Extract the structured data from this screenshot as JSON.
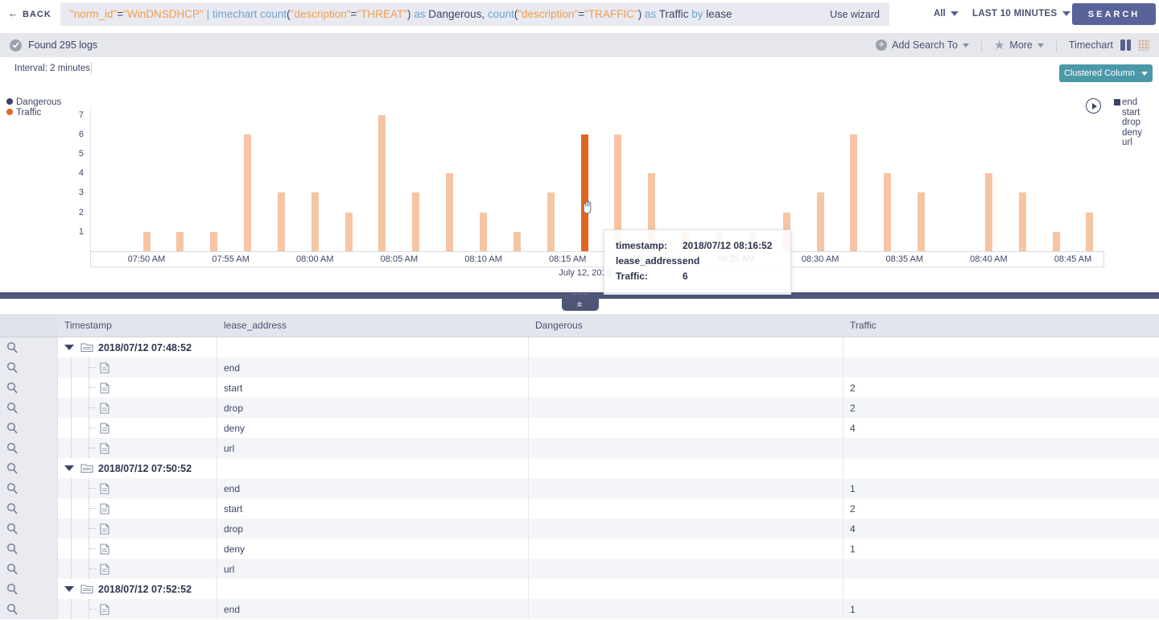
{
  "topbar": {
    "back_label": "BACK",
    "query_tokens": [
      {
        "t": "\"norm_id\"",
        "c": "str"
      },
      {
        "t": "=",
        "c": "plain"
      },
      {
        "t": "\"WinDNSDHCP\"",
        "c": "str"
      },
      {
        "t": " | ",
        "c": "kw"
      },
      {
        "t": "timechart count",
        "c": "kw"
      },
      {
        "t": "(",
        "c": "plain"
      },
      {
        "t": "\"description\"",
        "c": "str"
      },
      {
        "t": "=",
        "c": "plain"
      },
      {
        "t": "\"THREAT\"",
        "c": "str"
      },
      {
        "t": ") ",
        "c": "plain"
      },
      {
        "t": "as ",
        "c": "kw"
      },
      {
        "t": "Dangerous, ",
        "c": "plain"
      },
      {
        "t": "count",
        "c": "kw"
      },
      {
        "t": "(",
        "c": "plain"
      },
      {
        "t": "\"description\"",
        "c": "str"
      },
      {
        "t": "=",
        "c": "plain"
      },
      {
        "t": "\"TRAFFIC\"",
        "c": "str"
      },
      {
        "t": ") ",
        "c": "plain"
      },
      {
        "t": "as ",
        "c": "kw"
      },
      {
        "t": "Traffic ",
        "c": "plain"
      },
      {
        "t": "by ",
        "c": "kw"
      },
      {
        "t": "lease",
        "c": "plain"
      }
    ],
    "use_wizard": "Use wizard",
    "scope_label": "All",
    "time_range": "LAST 10 MINUTES",
    "search_label": "SEARCH"
  },
  "resultsbar": {
    "found": "Found 295 logs",
    "add_search_to": "Add Search To",
    "more": "More",
    "view_label": "Timechart"
  },
  "chart": {
    "interval_label": "Interval: 2 minutes",
    "chart_type_button": "Clustered Column",
    "series_legend": [
      {
        "label": "Dangerous",
        "color": "#3d4465"
      },
      {
        "label": "Traffic",
        "color": "#e8622d"
      }
    ],
    "group_legend": [
      "end",
      "start",
      "drop",
      "deny",
      "url"
    ],
    "date_label": "July 12, 2018",
    "tooltip": {
      "rows": [
        {
          "label": "timestamp:",
          "value": "2018/07/12 08:16:52"
        },
        {
          "label": "lease_address:",
          "value": "end"
        },
        {
          "label": "Traffic:",
          "value": "6"
        }
      ]
    }
  },
  "chart_data": {
    "type": "bar",
    "title": "",
    "xlabel": "July 12, 2018",
    "ylabel": "",
    "ylim": [
      0,
      7.5
    ],
    "y_ticks": [
      1,
      2,
      3,
      4,
      5,
      6,
      7
    ],
    "x": [
      "07:50 AM",
      "07:52 AM",
      "07:54 AM",
      "07:56 AM",
      "07:58 AM",
      "08:00 AM",
      "08:02 AM",
      "08:04 AM",
      "08:06 AM",
      "08:08 AM",
      "08:10 AM",
      "08:12 AM",
      "08:14 AM",
      "08:16 AM",
      "08:18 AM",
      "08:20 AM",
      "08:22 AM",
      "08:24 AM",
      "08:26 AM",
      "08:28 AM",
      "08:30 AM",
      "08:32 AM",
      "08:34 AM",
      "08:36 AM",
      "08:38 AM",
      "08:40 AM",
      "08:42 AM",
      "08:44 AM",
      "08:46 AM"
    ],
    "x_tick_labels": [
      "07:50 AM",
      "07:55 AM",
      "08:00 AM",
      "08:05 AM",
      "08:10 AM",
      "08:15 AM",
      "08:20 AM",
      "08:25 AM",
      "08:30 AM",
      "08:35 AM",
      "08:40 AM",
      "08:45 AM"
    ],
    "series": [
      {
        "name": "Dangerous",
        "color": "#3d4465",
        "values": [
          0,
          0,
          0,
          0,
          0,
          0,
          0,
          0,
          0,
          0,
          0,
          0,
          0,
          0,
          0,
          0,
          0,
          0,
          0,
          0,
          0,
          0,
          0,
          0,
          0,
          0,
          0,
          0,
          0
        ]
      },
      {
        "name": "Traffic",
        "color": "#f6c5a3",
        "values": [
          1,
          1,
          1,
          6,
          3,
          3,
          2,
          7,
          3,
          4,
          2,
          1,
          3,
          6,
          6,
          4,
          1,
          1,
          1,
          2,
          3,
          6,
          4,
          3,
          0,
          4,
          3,
          1,
          2
        ]
      }
    ],
    "highlight_index": 13,
    "highlight_color": "#df6621",
    "legend_position": "left",
    "grid": false
  },
  "table": {
    "columns": [
      "Timestamp",
      "lease_address",
      "Dangerous",
      "Traffic"
    ],
    "groups": [
      {
        "timestamp": "2018/07/12 07:48:52",
        "rows": [
          {
            "lease": "end",
            "dangerous": "",
            "traffic": ""
          },
          {
            "lease": "start",
            "dangerous": "",
            "traffic": "2"
          },
          {
            "lease": "drop",
            "dangerous": "",
            "traffic": "2"
          },
          {
            "lease": "deny",
            "dangerous": "",
            "traffic": "4"
          },
          {
            "lease": "url",
            "dangerous": "",
            "traffic": ""
          }
        ]
      },
      {
        "timestamp": "2018/07/12 07:50:52",
        "rows": [
          {
            "lease": "end",
            "dangerous": "",
            "traffic": "1"
          },
          {
            "lease": "start",
            "dangerous": "",
            "traffic": "2"
          },
          {
            "lease": "drop",
            "dangerous": "",
            "traffic": "4"
          },
          {
            "lease": "deny",
            "dangerous": "",
            "traffic": "1"
          },
          {
            "lease": "url",
            "dangerous": "",
            "traffic": ""
          }
        ]
      },
      {
        "timestamp": "2018/07/12 07:52:52",
        "rows": [
          {
            "lease": "end",
            "dangerous": "",
            "traffic": "1"
          }
        ]
      }
    ]
  }
}
